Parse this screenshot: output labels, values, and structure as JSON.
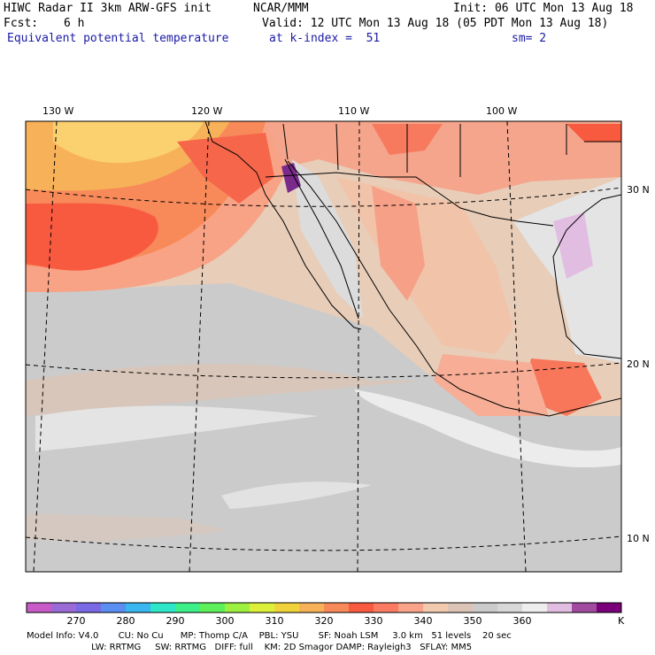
{
  "header": {
    "title": "HIWC Radar II 3km ARW-GFS init",
    "org": "NCAR/MMM",
    "init": "Init: 06 UTC Mon 13 Aug 18",
    "fcst_label": "Fcst:",
    "fcst_value": "6 h",
    "valid": "Valid: 12 UTC Mon 13 Aug 18 (05 PDT Mon 13 Aug 18)",
    "field": "Equivalent potential temperature",
    "level": "at k-index =  51",
    "smooth": "sm= 2"
  },
  "map": {
    "lon_labels": [
      "130 W",
      "120 W",
      "110 W",
      "100 W"
    ],
    "lat_labels": [
      "30 N",
      "20 N",
      "10 N"
    ],
    "colors": {
      "ocean_base": "#c9b2a1",
      "frame": "#000000"
    }
  },
  "colorbar": {
    "unit": "K",
    "ticks": [
      "270",
      "280",
      "290",
      "300",
      "310",
      "320",
      "330",
      "340",
      "350",
      "360"
    ],
    "colors": [
      "#c85ac8",
      "#9a6ad6",
      "#7a6ae6",
      "#5a8ef0",
      "#3ab6f0",
      "#2ee6c8",
      "#3ef08a",
      "#5ef05a",
      "#9ef040",
      "#dcf03a",
      "#f0d23a",
      "#f7b259",
      "#f88a5a",
      "#f85a40",
      "#fa7a62",
      "#f9a48a",
      "#f1cab0",
      "#dcc4b6",
      "#cbcbcb",
      "#d8d8d8",
      "#eeeeee",
      "#e2bde2",
      "#a04aa0",
      "#7a007a"
    ]
  },
  "footer": {
    "line1": "Model Info: V4.0       CU: No Cu      MP: Thomp C/A    PBL: YSU       SF: Noah LSM     3.0 km   51 levels    20 sec",
    "line2": "                       LW: RRTMG     SW: RRTMG   DIFF: full    KM: 2D Smagor DAMP: Rayleigh3   SFLAY: MM5"
  }
}
